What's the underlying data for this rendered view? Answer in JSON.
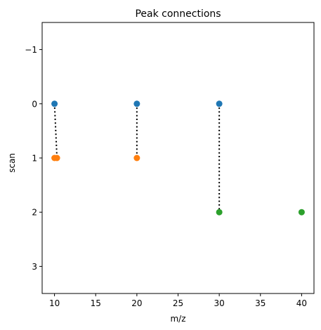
{
  "chart_data": {
    "type": "scatter",
    "title": "Peak connections",
    "xlabel": "m/z",
    "ylabel": "scan",
    "xlim": [
      8.5,
      41.5
    ],
    "ylim": [
      -1.5,
      3.5
    ],
    "y_inverted": true,
    "xticks": [
      10,
      15,
      20,
      25,
      30,
      35,
      40
    ],
    "yticks": [
      -1,
      0,
      1,
      2,
      3
    ],
    "ytick_labels": [
      "−1",
      "0",
      "1",
      "2",
      "3"
    ],
    "grid": false,
    "series": [
      {
        "color": "#1f77b4",
        "points": [
          {
            "x": 10,
            "y": 0
          },
          {
            "x": 20,
            "y": 0
          },
          {
            "x": 30,
            "y": 0
          }
        ]
      },
      {
        "color": "#ff7f0e",
        "points": [
          {
            "x": 10,
            "y": 1
          },
          {
            "x": 10.3,
            "y": 1
          },
          {
            "x": 20,
            "y": 1
          }
        ]
      },
      {
        "color": "#2ca02c",
        "points": [
          {
            "x": 30,
            "y": 2
          },
          {
            "x": 40,
            "y": 2
          }
        ]
      }
    ],
    "connections": [
      {
        "from": {
          "x": 10,
          "y": 0
        },
        "to": {
          "x": 10.3,
          "y": 1
        }
      },
      {
        "from": {
          "x": 20,
          "y": 0
        },
        "to": {
          "x": 20,
          "y": 1
        }
      },
      {
        "from": {
          "x": 30,
          "y": 0
        },
        "to": {
          "x": 30,
          "y": 2
        }
      }
    ],
    "connection_style": "dotted",
    "connection_color": "#000000"
  }
}
